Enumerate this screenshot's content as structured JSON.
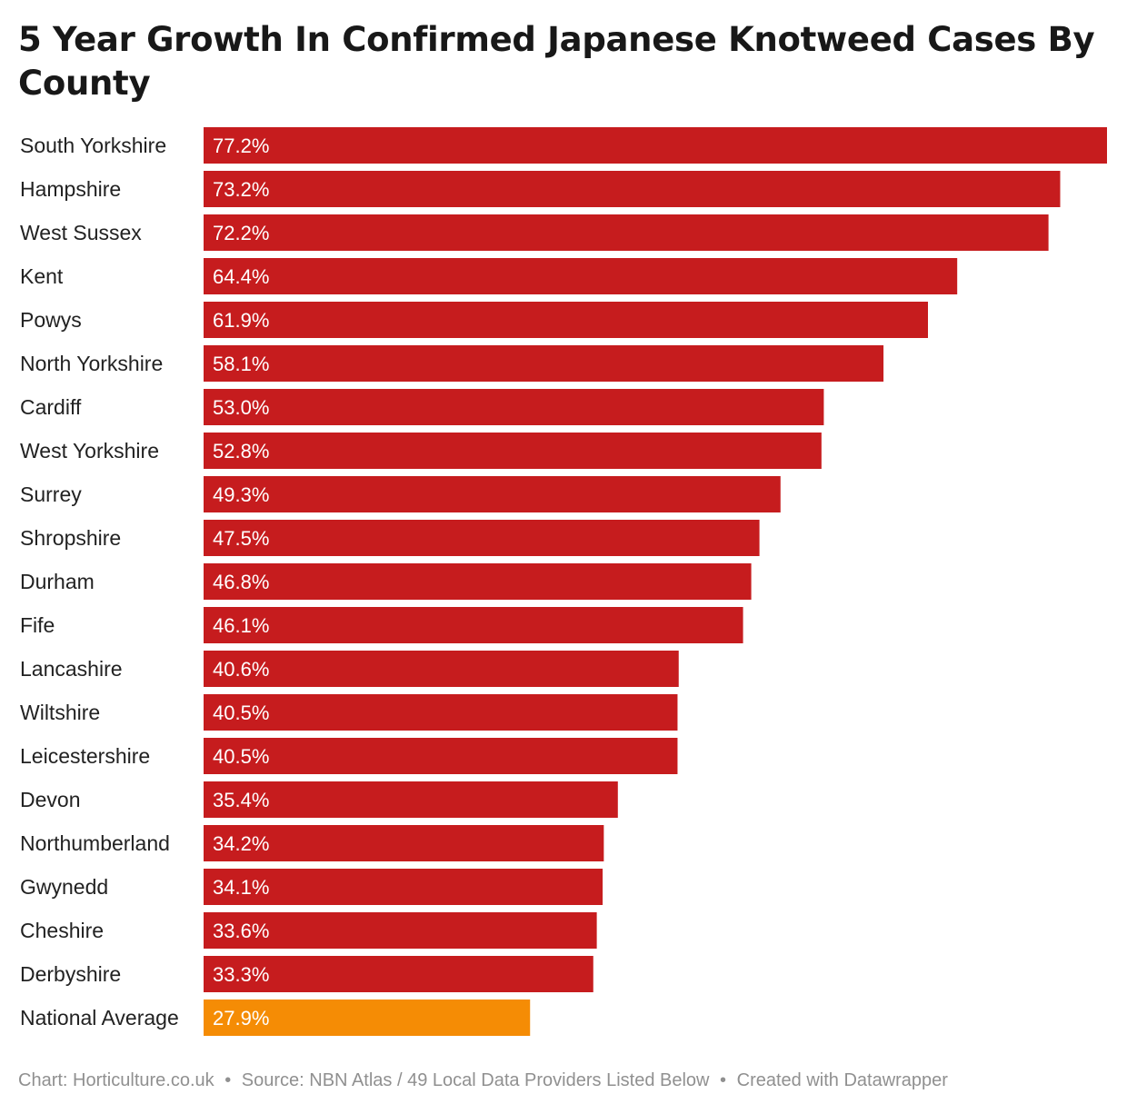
{
  "title": "5 Year Growth In Confirmed Japanese Knotweed Cases By County",
  "footer": {
    "chart_credit": "Chart: Horticulture.co.uk",
    "separator": "•",
    "source": "Source: NBN Atlas / 49 Local Data Providers Listed Below",
    "tool": "Created with Datawrapper"
  },
  "colors": {
    "bar": "#c61c1e",
    "highlight_bar": "#f58c05",
    "value_text": "#ffffff",
    "footer_text": "#909090"
  },
  "chart_data": {
    "type": "bar",
    "orientation": "horizontal",
    "title": "5 Year Growth In Confirmed Japanese Knotweed Cases By County",
    "xlabel": "",
    "ylabel": "",
    "value_unit": "%",
    "xlim": [
      0,
      77.2
    ],
    "grid": false,
    "categories": [
      "South Yorkshire",
      "Hampshire",
      "West Sussex",
      "Kent",
      "Powys",
      "North Yorkshire",
      "Cardiff",
      "West Yorkshire",
      "Surrey",
      "Shropshire",
      "Durham",
      "Fife",
      "Lancashire",
      "Wiltshire",
      "Leicestershire",
      "Devon",
      "Northumberland",
      "Gwynedd",
      "Cheshire",
      "Derbyshire",
      "National Average"
    ],
    "values": [
      77.2,
      73.2,
      72.2,
      64.4,
      61.9,
      58.1,
      53.0,
      52.8,
      49.3,
      47.5,
      46.8,
      46.1,
      40.6,
      40.5,
      40.5,
      35.4,
      34.2,
      34.1,
      33.6,
      33.3,
      27.9
    ],
    "value_labels": [
      "77.2%",
      "73.2%",
      "72.2%",
      "64.4%",
      "61.9%",
      "58.1%",
      "53.0%",
      "52.8%",
      "49.3%",
      "47.5%",
      "46.8%",
      "46.1%",
      "40.6%",
      "40.5%",
      "40.5%",
      "35.4%",
      "34.2%",
      "34.1%",
      "33.6%",
      "33.3%",
      "27.9%"
    ],
    "highlight_category": "National Average"
  }
}
